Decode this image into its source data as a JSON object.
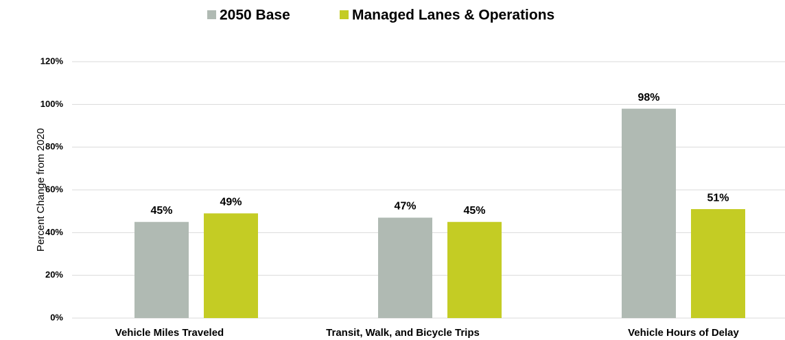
{
  "chart_data": {
    "type": "bar",
    "categories": [
      "Vehicle Miles Traveled",
      "Transit, Walk, and Bicycle Trips",
      "Vehicle Hours of Delay"
    ],
    "series": [
      {
        "name": "2050 Base",
        "color": "#b0bab3",
        "values": [
          45,
          47,
          98
        ],
        "value_labels": [
          "45%",
          "47%",
          "98%"
        ]
      },
      {
        "name": "Managed Lanes & Operations",
        "color": "#c4cc24",
        "values": [
          49,
          45,
          51
        ],
        "value_labels": [
          "49%",
          "45%",
          "51%"
        ]
      }
    ],
    "y_label": "Percent Change from 2020",
    "ylim": [
      0,
      120
    ],
    "yticks": [
      {
        "value": 0,
        "label": "0%"
      },
      {
        "value": 20,
        "label": "20%"
      },
      {
        "value": 40,
        "label": "40%"
      },
      {
        "value": 60,
        "label": "60%"
      },
      {
        "value": 80,
        "label": "80%"
      },
      {
        "value": 100,
        "label": "100%"
      },
      {
        "value": 120,
        "label": "120%"
      }
    ],
    "grid": true,
    "legend": "top"
  }
}
